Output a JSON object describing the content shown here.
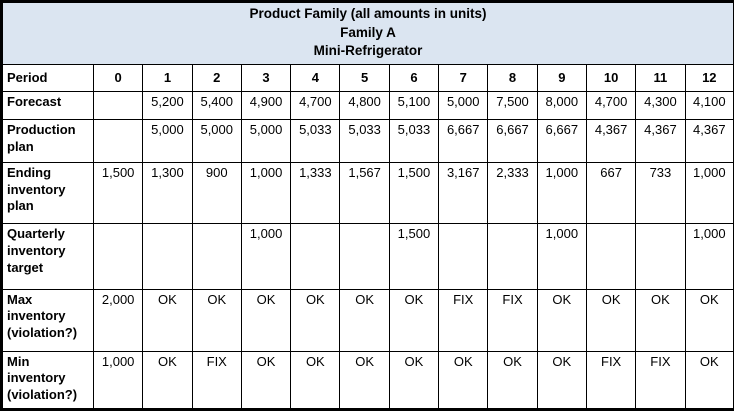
{
  "title": {
    "line1": "Product Family (all amounts in units)",
    "line2": "Family A",
    "line3": "Mini-Refrigerator"
  },
  "period_row": {
    "label": "Period",
    "values": [
      "0",
      "1",
      "2",
      "3",
      "4",
      "5",
      "6",
      "7",
      "8",
      "9",
      "10",
      "11",
      "12"
    ]
  },
  "rows": [
    {
      "label": "Forecast",
      "values": [
        "",
        "5,200",
        "5,400",
        "4,900",
        "4,700",
        "4,800",
        "5,100",
        "5,000",
        "7,500",
        "8,000",
        "4,700",
        "4,300",
        "4,100"
      ]
    },
    {
      "label": "Production plan",
      "values": [
        "",
        "5,000",
        "5,000",
        "5,000",
        "5,033",
        "5,033",
        "5,033",
        "6,667",
        "6,667",
        "6,667",
        "4,367",
        "4,367",
        "4,367"
      ]
    },
    {
      "label": "Ending inventory plan",
      "values": [
        "1,500",
        "1,300",
        "900",
        "1,000",
        "1,333",
        "1,567",
        "1,500",
        "3,167",
        "2,333",
        "1,000",
        "667",
        "733",
        "1,000"
      ]
    },
    {
      "label": "Quarterly inventory target",
      "values": [
        "",
        "",
        "",
        "1,000",
        "",
        "",
        "1,500",
        "",
        "",
        "1,000",
        "",
        "",
        "1,000"
      ]
    },
    {
      "label": "Max inventory (violation?)",
      "values": [
        "2,000",
        "OK",
        "OK",
        "OK",
        "OK",
        "OK",
        "OK",
        "FIX",
        "FIX",
        "OK",
        "OK",
        "OK",
        "OK"
      ]
    },
    {
      "label": "Min inventory (violation?)",
      "values": [
        "1,000",
        "OK",
        "FIX",
        "OK",
        "OK",
        "OK",
        "OK",
        "OK",
        "OK",
        "OK",
        "FIX",
        "FIX",
        "OK"
      ]
    }
  ],
  "row_height_classes": [
    "h-forecast",
    "h-production",
    "h-ending",
    "h-quarterly",
    "h-max",
    "h-min"
  ],
  "colors": {
    "header_bg": "#dbe5f1",
    "border": "#000000",
    "text": "#000000"
  }
}
